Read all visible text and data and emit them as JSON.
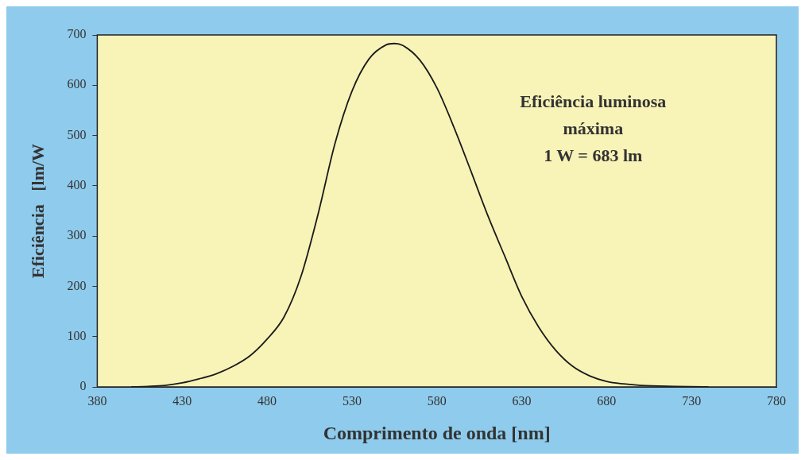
{
  "chart_data": {
    "type": "line",
    "xlabel": "Comprimento de onda [nm]",
    "ylabel": "Eficiência   [lm/W",
    "annotations": [
      "Eficiência luminosa\nmáxima\n1 W = 683 lm"
    ],
    "x": [
      400,
      410,
      420,
      430,
      440,
      450,
      460,
      470,
      480,
      490,
      500,
      510,
      520,
      530,
      540,
      550,
      555,
      560,
      570,
      580,
      590,
      600,
      610,
      620,
      630,
      640,
      650,
      660,
      670,
      680,
      690,
      700,
      720,
      740
    ],
    "series": [
      {
        "color": "#1a1a1a",
        "values": [
          0,
          1,
          3,
          8,
          16,
          26,
          41,
          62,
          95,
          139,
          220,
          343,
          484,
          588,
          652,
          680,
          683,
          679,
          650,
          595,
          517,
          430,
          341,
          260,
          180,
          119,
          73,
          41,
          22,
          11,
          6,
          3,
          1,
          0
        ]
      }
    ],
    "xlim": [
      380,
      780
    ],
    "xticks": [
      380,
      430,
      480,
      530,
      580,
      630,
      680,
      730,
      780
    ],
    "ylim": [
      0,
      700
    ],
    "yticks": [
      0,
      100,
      200,
      300,
      400,
      500,
      600,
      700
    ],
    "grid": false,
    "legend": false,
    "marker": "none",
    "line_style": "solid"
  }
}
